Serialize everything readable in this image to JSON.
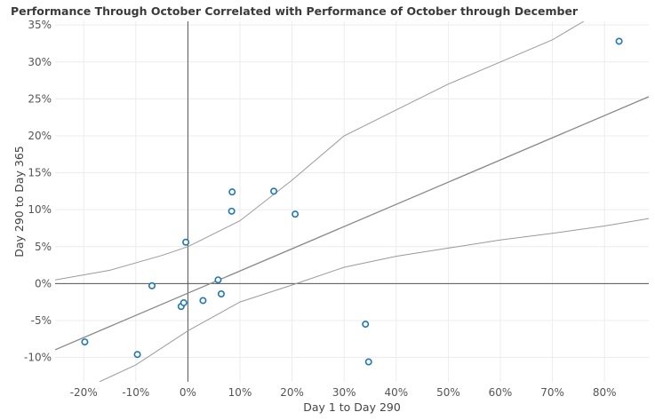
{
  "chart_data": {
    "type": "scatter",
    "title": "Performance Through October Correlated with Performance of October through December",
    "xlabel": "Day 1 to Day 290",
    "ylabel": "Day 290 to Day 365",
    "xlim": [
      -0.255,
      0.885
    ],
    "ylim": [
      -0.133,
      0.355
    ],
    "x_ticks": [
      -0.2,
      -0.1,
      0.0,
      0.1,
      0.2,
      0.3,
      0.4,
      0.5,
      0.6,
      0.7,
      0.8
    ],
    "x_tick_labels": [
      "-20%",
      "-10%",
      "0%",
      "10%",
      "20%",
      "30%",
      "40%",
      "50%",
      "60%",
      "70%",
      "80%"
    ],
    "y_ticks": [
      -0.1,
      -0.05,
      0.0,
      0.05,
      0.1,
      0.15,
      0.2,
      0.25,
      0.3,
      0.35
    ],
    "y_tick_labels": [
      "-10%",
      "-5%",
      "0%",
      "5%",
      "10%",
      "15%",
      "20%",
      "25%",
      "30%",
      "35%"
    ],
    "grid": true,
    "points": [
      {
        "x": -0.198,
        "y": -0.079
      },
      {
        "x": -0.097,
        "y": -0.096
      },
      {
        "x": -0.069,
        "y": -0.003
      },
      {
        "x": -0.013,
        "y": -0.031
      },
      {
        "x": -0.008,
        "y": -0.026
      },
      {
        "x": -0.004,
        "y": 0.056
      },
      {
        "x": 0.029,
        "y": -0.023
      },
      {
        "x": 0.058,
        "y": 0.005
      },
      {
        "x": 0.064,
        "y": -0.014
      },
      {
        "x": 0.084,
        "y": 0.098
      },
      {
        "x": 0.085,
        "y": 0.124
      },
      {
        "x": 0.165,
        "y": 0.125
      },
      {
        "x": 0.206,
        "y": 0.094
      },
      {
        "x": 0.341,
        "y": -0.055
      },
      {
        "x": 0.347,
        "y": -0.106
      },
      {
        "x": 0.828,
        "y": 0.328
      }
    ],
    "trend_line": {
      "intercept": -0.013,
      "slope": 0.3005
    },
    "confidence_band": {
      "upper": [
        [
          -0.255,
          0.005
        ],
        [
          -0.15,
          0.018
        ],
        [
          -0.05,
          0.038
        ],
        [
          0.0,
          0.05
        ],
        [
          0.1,
          0.085
        ],
        [
          0.2,
          0.14
        ],
        [
          0.3,
          0.2
        ],
        [
          0.4,
          0.235
        ],
        [
          0.5,
          0.27
        ],
        [
          0.6,
          0.3
        ],
        [
          0.7,
          0.33
        ],
        [
          0.76,
          0.355
        ]
      ],
      "lower": [
        [
          -0.17,
          -0.133
        ],
        [
          -0.1,
          -0.11
        ],
        [
          0.0,
          -0.064
        ],
        [
          0.1,
          -0.025
        ],
        [
          0.2,
          -0.002
        ],
        [
          0.3,
          0.022
        ],
        [
          0.4,
          0.037
        ],
        [
          0.5,
          0.048
        ],
        [
          0.6,
          0.059
        ],
        [
          0.7,
          0.068
        ],
        [
          0.8,
          0.078
        ],
        [
          0.885,
          0.088
        ]
      ]
    },
    "colors": {
      "point": "#1f77b4",
      "trend": "#8a8a8a",
      "band": "#9a9a9a",
      "axis": "#555555",
      "grid": "#ececec"
    }
  }
}
